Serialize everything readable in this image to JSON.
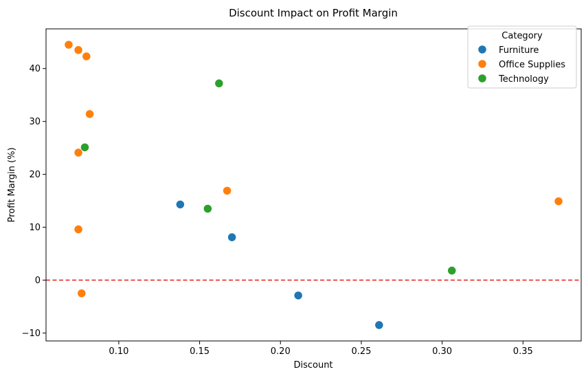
{
  "chart_data": {
    "type": "scatter",
    "title": "Discount Impact on Profit Margin",
    "xlabel": "Discount",
    "ylabel": "Profit Margin (%)",
    "xlim": [
      0.055,
      0.386
    ],
    "ylim": [
      -11.5,
      47.5
    ],
    "xticks": [
      0.1,
      0.15,
      0.2,
      0.25,
      0.3,
      0.35
    ],
    "yticks": [
      -10,
      0,
      10,
      20,
      30,
      40
    ],
    "grid": false,
    "reference_line": {
      "y": 0,
      "style": "dashed",
      "color": "#e41a1c"
    },
    "legend": {
      "title": "Category",
      "placement": "top-right"
    },
    "series": [
      {
        "name": "Furniture",
        "color": "#1f77b4",
        "points": [
          {
            "x": 0.138,
            "y": 14.3
          },
          {
            "x": 0.17,
            "y": 8.1
          },
          {
            "x": 0.211,
            "y": -2.9
          },
          {
            "x": 0.261,
            "y": -8.5
          }
        ]
      },
      {
        "name": "Office Supplies",
        "color": "#ff7f0e",
        "points": [
          {
            "x": 0.069,
            "y": 44.5
          },
          {
            "x": 0.075,
            "y": 43.5
          },
          {
            "x": 0.08,
            "y": 42.3
          },
          {
            "x": 0.082,
            "y": 31.4
          },
          {
            "x": 0.075,
            "y": 24.1
          },
          {
            "x": 0.075,
            "y": 9.6
          },
          {
            "x": 0.077,
            "y": -2.5
          },
          {
            "x": 0.167,
            "y": 16.9
          },
          {
            "x": 0.372,
            "y": 14.9
          }
        ]
      },
      {
        "name": "Technology",
        "color": "#2ca02c",
        "points": [
          {
            "x": 0.162,
            "y": 37.2
          },
          {
            "x": 0.079,
            "y": 25.1
          },
          {
            "x": 0.155,
            "y": 13.5
          },
          {
            "x": 0.306,
            "y": 1.8
          }
        ]
      }
    ]
  }
}
